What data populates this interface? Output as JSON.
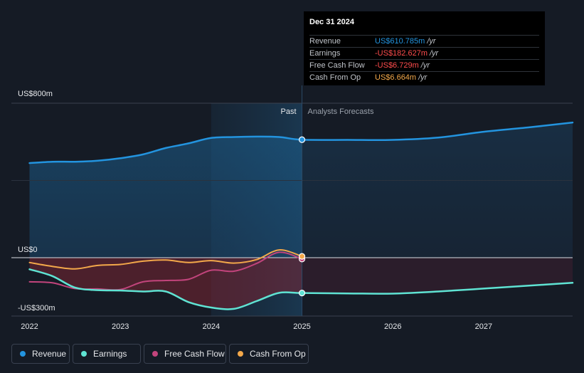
{
  "tooltip": {
    "date": "Dec 31 2024",
    "rows": [
      {
        "label": "Revenue",
        "value": "US$610.785m",
        "unit": "/yr",
        "color": "#2394df"
      },
      {
        "label": "Earnings",
        "value": "-US$182.627m",
        "unit": "/yr",
        "color": "#ff4c4c"
      },
      {
        "label": "Free Cash Flow",
        "value": "-US$6.729m",
        "unit": "/yr",
        "color": "#ff4c4c"
      },
      {
        "label": "Cash From Op",
        "value": "US$6.664m",
        "unit": "/yr",
        "color": "#f3a84a"
      }
    ]
  },
  "legend": [
    {
      "label": "Revenue",
      "color": "#2394df"
    },
    {
      "label": "Earnings",
      "color": "#5fe3d3"
    },
    {
      "label": "Free Cash Flow",
      "color": "#c2447c"
    },
    {
      "label": "Cash From Op",
      "color": "#f3a84a"
    }
  ],
  "chart_data": {
    "type": "line",
    "y_tick_labels": [
      "US$800m",
      "US$0",
      "-US$300m"
    ],
    "x_tick_labels": [
      "2022",
      "2023",
      "2024",
      "2025",
      "2026",
      "2027"
    ],
    "ylim": [
      -300,
      800
    ],
    "xlim": [
      2021.8,
      2027.98
    ],
    "divider_x": 2025.0,
    "divider_labels": {
      "past": "Past",
      "forecast": "Analysts Forecasts"
    },
    "series": [
      {
        "name": "Revenue",
        "color": "#2394df",
        "x": [
          2022.0,
          2022.25,
          2022.5,
          2022.75,
          2023.0,
          2023.25,
          2023.5,
          2023.75,
          2024.0,
          2024.25,
          2024.5,
          2024.75,
          2025.0,
          2025.5,
          2026.0,
          2026.5,
          2027.0,
          2027.5,
          2028.0
        ],
        "y": [
          490,
          497,
          497,
          502,
          515,
          535,
          568,
          592,
          620,
          625,
          627,
          625,
          611,
          610,
          610,
          622,
          652,
          675,
          700
        ]
      },
      {
        "name": "Earnings",
        "color": "#5fe3d3",
        "x": [
          2022.0,
          2022.25,
          2022.5,
          2022.75,
          2023.0,
          2023.25,
          2023.5,
          2023.75,
          2024.0,
          2024.25,
          2024.5,
          2024.75,
          2025.0,
          2025.5,
          2026.0,
          2026.5,
          2027.0,
          2027.5,
          2028.0
        ],
        "y": [
          -60,
          -95,
          -155,
          -168,
          -170,
          -175,
          -175,
          -230,
          -258,
          -265,
          -225,
          -182,
          -183,
          -185,
          -186,
          -175,
          -160,
          -145,
          -130
        ]
      },
      {
        "name": "Free Cash Flow",
        "color": "#c2447c",
        "x": [
          2022.0,
          2022.25,
          2022.5,
          2022.75,
          2023.0,
          2023.25,
          2023.5,
          2023.75,
          2024.0,
          2024.25,
          2024.5,
          2024.75,
          2025.0
        ],
        "y": [
          -125,
          -130,
          -160,
          -162,
          -165,
          -125,
          -118,
          -112,
          -65,
          -70,
          -30,
          28,
          -7
        ]
      },
      {
        "name": "Cash From Op",
        "color": "#f3a84a",
        "x": [
          2022.0,
          2022.25,
          2022.5,
          2022.75,
          2023.0,
          2023.25,
          2023.5,
          2023.75,
          2024.0,
          2024.25,
          2024.5,
          2024.75,
          2025.0
        ],
        "y": [
          -25,
          -45,
          -58,
          -40,
          -35,
          -18,
          -12,
          -25,
          -15,
          -28,
          -10,
          40,
          7
        ]
      }
    ]
  }
}
